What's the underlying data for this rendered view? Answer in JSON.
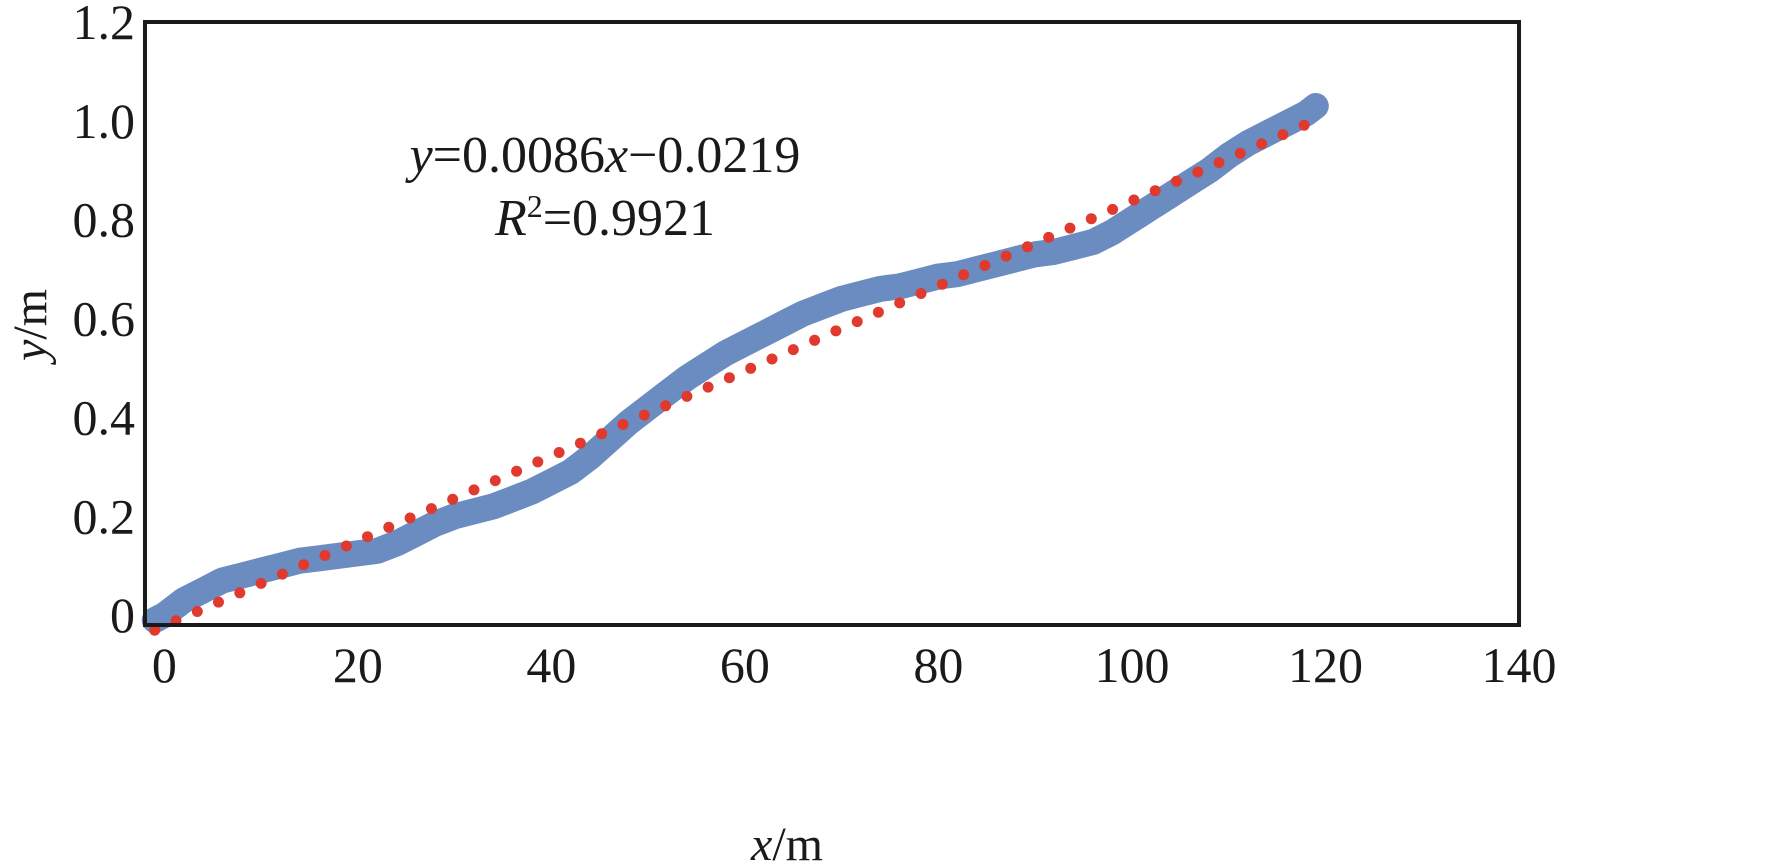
{
  "chart_data": {
    "type": "scatter",
    "title": "",
    "xlabel": "x/m",
    "ylabel": "y/m",
    "xlabel_var": "x",
    "ylabel_var": "y",
    "unit": "/m",
    "xlim": [
      -2,
      140
    ],
    "ylim": [
      -0.02,
      1.2
    ],
    "x_ticks": [
      0,
      20,
      40,
      60,
      80,
      100,
      120,
      140
    ],
    "y_ticks": [
      0,
      0.2,
      0.4,
      0.6,
      0.8,
      1.0,
      1.2
    ],
    "y_tick_labels": [
      "0",
      "0.2",
      "0.4",
      "0.6",
      "0.8",
      "1.0",
      "1.2"
    ],
    "annotation": {
      "equation_var_y": "y",
      "equation_mid": "=0.0086",
      "equation_var_x": "x",
      "equation_tail": "−0.0219",
      "r2_var": "R",
      "r2_sup": "2",
      "r2_value": "=0.9921"
    },
    "colors": {
      "measured": "#6b8cc0",
      "fit": "#e03a2f",
      "frame": "#1a1a1a"
    },
    "series": [
      {
        "name": "measured",
        "style": "thick-line",
        "x": [
          -1,
          0,
          2,
          4,
          6,
          8,
          10,
          12,
          14,
          16,
          18,
          20,
          22,
          24,
          26,
          28,
          30,
          32,
          34,
          36,
          38,
          40,
          42,
          44,
          46,
          48,
          50,
          52,
          54,
          56,
          58,
          60,
          62,
          64,
          66,
          68,
          70,
          72,
          74,
          76,
          78,
          80,
          82,
          84,
          86,
          88,
          90,
          92,
          94,
          96,
          98,
          100,
          102,
          104,
          106,
          108,
          110,
          112,
          114,
          116,
          118,
          119
        ],
        "y": [
          -0.01,
          0.0,
          0.03,
          0.05,
          0.07,
          0.08,
          0.09,
          0.1,
          0.11,
          0.115,
          0.12,
          0.125,
          0.13,
          0.145,
          0.165,
          0.185,
          0.2,
          0.21,
          0.22,
          0.235,
          0.25,
          0.27,
          0.29,
          0.32,
          0.355,
          0.39,
          0.42,
          0.45,
          0.48,
          0.505,
          0.53,
          0.55,
          0.57,
          0.59,
          0.61,
          0.625,
          0.64,
          0.65,
          0.66,
          0.665,
          0.675,
          0.685,
          0.69,
          0.7,
          0.71,
          0.72,
          0.73,
          0.735,
          0.745,
          0.755,
          0.775,
          0.8,
          0.825,
          0.85,
          0.875,
          0.9,
          0.93,
          0.955,
          0.975,
          0.995,
          1.015,
          1.03
        ]
      },
      {
        "name": "fit",
        "style": "dots",
        "slope": 0.0086,
        "intercept": -0.0219,
        "x_start": -1,
        "x_end": 118,
        "x_step": 2.2
      }
    ]
  }
}
